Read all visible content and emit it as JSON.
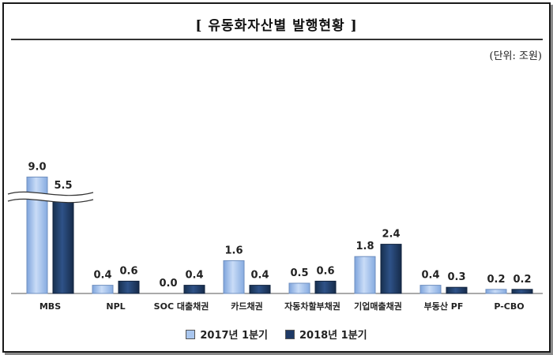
{
  "header": {
    "title": "[ 유동화자산별 발행현황 ]",
    "unit": "(단위: 조원)"
  },
  "colors": {
    "series_2017": "#a9c6ee",
    "series_2018": "#1f3a66"
  },
  "chart_data": {
    "type": "bar",
    "title": "[ 유동화자산별 발행현황 ]",
    "unit_label": "(단위: 조원)",
    "categories": [
      "MBS",
      "NPL",
      "SOC 대출채권",
      "카드채권",
      "자동차할부채권",
      "기업매출채권",
      "부동산 PF",
      "P-CBO"
    ],
    "series": [
      {
        "name": "2017년 1분기",
        "values": [
          9.0,
          0.4,
          0.0,
          1.6,
          0.5,
          1.8,
          0.4,
          0.2
        ]
      },
      {
        "name": "2018년 1분기",
        "values": [
          5.5,
          0.6,
          0.4,
          0.4,
          0.6,
          2.4,
          0.3,
          0.2
        ]
      }
    ],
    "value_labels": [
      [
        "9.0",
        "0.4",
        "0.0",
        "1.6",
        "0.5",
        "1.8",
        "0.4",
        "0.2"
      ],
      [
        "5.5",
        "0.6",
        "0.4",
        "0.4",
        "0.6",
        "2.4",
        "0.3",
        "0.2"
      ]
    ],
    "axis_break": {
      "category": "MBS",
      "note": "y-axis broken on MBS bars"
    },
    "legend_position": "bottom-center",
    "grid": false
  }
}
